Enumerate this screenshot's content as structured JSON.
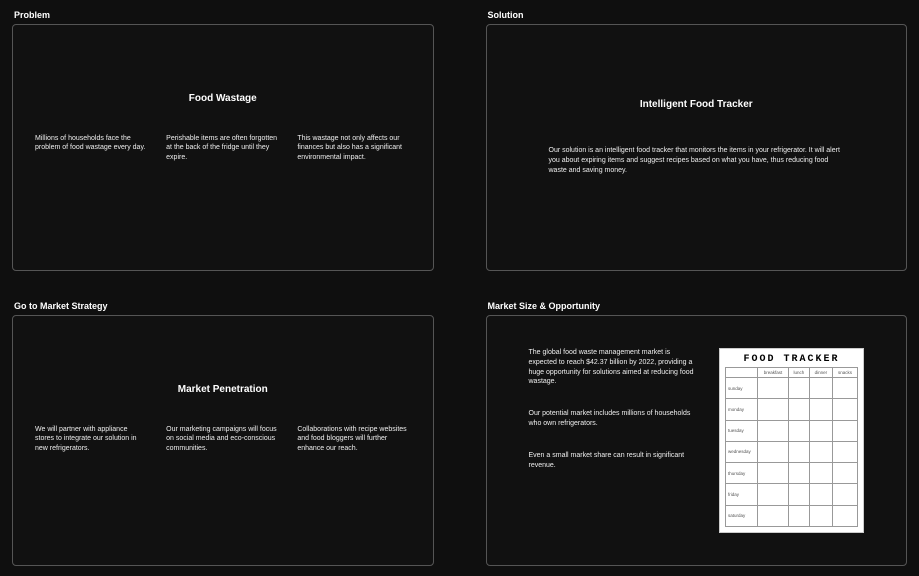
{
  "colors": {
    "background": "#0f0f0f",
    "panel_border": "#555555",
    "panel_bg": "#111111",
    "text_primary": "#ffffff",
    "text_body": "#eeeeee",
    "tracker_bg": "#ffffff",
    "tracker_grid": "#999999"
  },
  "panels": {
    "problem": {
      "label": "Problem",
      "title": "Food Wastage",
      "cols": [
        "Millions of households face the problem of food wastage every day.",
        "Perishable items are often forgotten at the back of the fridge until they expire.",
        "This wastage not only affects our finances but also has a significant environmental impact."
      ]
    },
    "solution": {
      "label": "Solution",
      "title": "Intelligent Food Tracker",
      "body": "Our solution is an intelligent food tracker that monitors the items in your refrigerator. It will alert you about expiring items and suggest recipes based on what you have, thus reducing food waste and saving money."
    },
    "gtm": {
      "label": "Go to Market Strategy",
      "title": "Market Penetration",
      "cols": [
        "We will partner with appliance stores to integrate our solution in new refrigerators.",
        "Our marketing campaigns will focus on social media and eco-conscious communities.",
        "Collaborations with recipe websites and food bloggers will further enhance our reach."
      ]
    },
    "market": {
      "label": "Market Size & Opportunity",
      "points": [
        "The global food waste management market is expected to reach $42.37 billion by 2022, providing a huge opportunity for solutions aimed at reducing food wastage.",
        "Our potential market includes millions of households who own refrigerators.",
        "Even a small market share can result in significant revenue."
      ],
      "tracker": {
        "title": "FOOD TRACKER",
        "columns": [
          "",
          "breakfast",
          "lunch",
          "dinner",
          "snacks"
        ],
        "rows": [
          "sunday",
          "monday",
          "tuesday",
          "wednesday",
          "thursday",
          "friday",
          "saturday"
        ]
      }
    }
  }
}
